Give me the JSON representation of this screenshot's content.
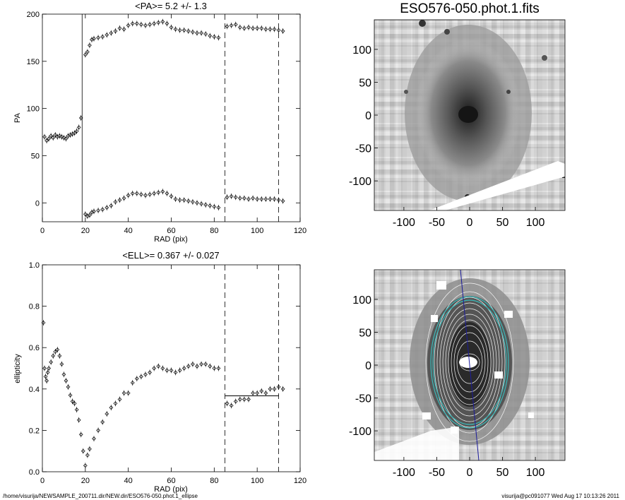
{
  "footer": {
    "path": "/home/visurija/NEWSAMPLE_200711.dir/NEW.dir/ESO576-050.phot.1_ellipse",
    "user_stamp": "visurija@pc091077  Wed Aug 17 10:13:26 2011"
  },
  "images": {
    "title": "ESO576-050.phot.1.fits",
    "xlim": [
      -145,
      145
    ],
    "ylim": [
      -145,
      145
    ],
    "xticks": [
      "-100",
      "-50",
      "0",
      "50",
      "100"
    ],
    "yticks": [
      "100",
      "50",
      "0",
      "-50",
      "-100"
    ],
    "xtick_values": [
      -100,
      -50,
      0,
      50,
      100
    ],
    "ytick_values": [
      100,
      50,
      0,
      -50,
      -100
    ]
  },
  "chart_data": [
    {
      "type": "scatter",
      "title": "<PA>=   5.2 +/-   1.3",
      "xlabel": "RAD (pix)",
      "ylabel": "PA",
      "xlim": [
        0,
        120
      ],
      "ylim": [
        -20,
        200
      ],
      "xticks": [
        "0",
        "20",
        "40",
        "60",
        "80",
        "100",
        "120"
      ],
      "yticks": [
        "0",
        "50",
        "100",
        "150",
        "200"
      ],
      "xtick_values": [
        0,
        20,
        40,
        60,
        80,
        100,
        120
      ],
      "ytick_values": [
        0,
        50,
        100,
        150,
        200
      ],
      "vlines_solid": [
        18.5
      ],
      "vlines_dashed": [
        85,
        110
      ],
      "series": [
        {
          "x": [
            1,
            2,
            3,
            4,
            5,
            6,
            7,
            8,
            9,
            10,
            11,
            12,
            13,
            14,
            15,
            16,
            17,
            18
          ],
          "y": [
            70,
            66,
            68,
            71,
            69,
            72,
            70,
            71,
            70,
            69,
            68,
            71,
            72,
            73,
            74,
            76,
            80,
            90
          ]
        },
        {
          "x": [
            20,
            21,
            22,
            23,
            24,
            26,
            28,
            30,
            32,
            34,
            36,
            38,
            40,
            42,
            44,
            46,
            48,
            50,
            52,
            54,
            56,
            58,
            60,
            62,
            64,
            66,
            68,
            70,
            72,
            74,
            76,
            78,
            80,
            82
          ],
          "y": [
            157,
            160,
            167,
            173,
            174,
            175,
            176,
            178,
            180,
            182,
            185,
            184,
            188,
            190,
            190,
            189,
            188,
            189,
            190,
            191,
            192,
            190,
            186,
            184,
            183,
            183,
            182,
            181,
            180,
            180,
            179,
            177,
            176,
            175
          ]
        },
        {
          "x": [
            20,
            21,
            22,
            23,
            24,
            26,
            28,
            30,
            32,
            34,
            36,
            38,
            40,
            42,
            44,
            46,
            48,
            50,
            52,
            54,
            56,
            58,
            60,
            62,
            64,
            66,
            68,
            70,
            72,
            74,
            76,
            78,
            80,
            82
          ],
          "y": [
            -12,
            -14,
            -13,
            -10,
            -9,
            -8,
            -7,
            -5,
            -3,
            1,
            3,
            5,
            8,
            10,
            10,
            9,
            8,
            9,
            10,
            11,
            12,
            10,
            7,
            4,
            3,
            3,
            2,
            1,
            0,
            -1,
            -2,
            -3,
            -4,
            -5
          ]
        },
        {
          "x": [
            86,
            88,
            90,
            92,
            94,
            96,
            98,
            100,
            102,
            104,
            106,
            108,
            110,
            112
          ],
          "y": [
            187,
            188,
            189,
            186,
            185,
            186,
            185,
            185,
            185,
            184,
            184,
            184,
            183,
            182
          ]
        },
        {
          "x": [
            86,
            88,
            90,
            92,
            94,
            96,
            98,
            100,
            102,
            104,
            106,
            108,
            110,
            112
          ],
          "y": [
            6,
            7,
            6,
            5,
            5,
            4,
            5,
            4,
            4,
            4,
            4,
            4,
            3,
            2
          ]
        }
      ]
    },
    {
      "type": "scatter",
      "title": "<ELL>= 0.367 +/-  0.027",
      "xlabel": "RAD (pix)",
      "ylabel": "ellipticity",
      "xlim": [
        0,
        120
      ],
      "ylim": [
        0,
        1
      ],
      "xticks": [
        "0",
        "20",
        "40",
        "60",
        "80",
        "100",
        "120"
      ],
      "yticks": [
        "0.0",
        "0.2",
        "0.4",
        "0.6",
        "0.8",
        "1.0"
      ],
      "xtick_values": [
        0,
        20,
        40,
        60,
        80,
        100,
        120
      ],
      "ytick_values": [
        0,
        0.2,
        0.4,
        0.6,
        0.8,
        1.0
      ],
      "vlines_dashed": [
        85,
        110
      ],
      "hline": {
        "y": 0.367,
        "x": [
          85,
          110
        ]
      },
      "series": [
        {
          "x": [
            0.5,
            1,
            1.5,
            2,
            2.5,
            3,
            4,
            5,
            6,
            7,
            8,
            9,
            10,
            11,
            12,
            13,
            14,
            15,
            16,
            17,
            18,
            19,
            20,
            21,
            22,
            24,
            26,
            28,
            30,
            32,
            34,
            36,
            38,
            40,
            42,
            44,
            46,
            48,
            50,
            52,
            54,
            56,
            58,
            60,
            62,
            64,
            66,
            68,
            70,
            72,
            74,
            76,
            78,
            80,
            82
          ],
          "y": [
            0.72,
            0.5,
            0.46,
            0.44,
            0.48,
            0.5,
            0.53,
            0.56,
            0.58,
            0.59,
            0.56,
            0.52,
            0.47,
            0.44,
            0.41,
            0.37,
            0.34,
            0.33,
            0.3,
            0.25,
            0.18,
            0.1,
            0.03,
            0.08,
            0.11,
            0.16,
            0.2,
            0.24,
            0.28,
            0.31,
            0.33,
            0.35,
            0.38,
            0.38,
            0.43,
            0.45,
            0.46,
            0.47,
            0.48,
            0.5,
            0.51,
            0.5,
            0.49,
            0.49,
            0.48,
            0.49,
            0.5,
            0.51,
            0.52,
            0.51,
            0.52,
            0.52,
            0.51,
            0.5,
            0.5
          ]
        },
        {
          "x": [
            86,
            88,
            90,
            92,
            94,
            96,
            98,
            100,
            102,
            104,
            106,
            108,
            110,
            112
          ],
          "y": [
            0.33,
            0.32,
            0.34,
            0.35,
            0.35,
            0.35,
            0.38,
            0.38,
            0.39,
            0.38,
            0.4,
            0.4,
            0.41,
            0.4
          ]
        }
      ]
    }
  ]
}
